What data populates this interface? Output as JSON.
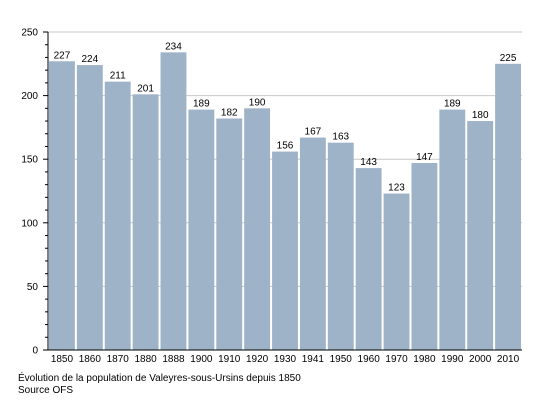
{
  "chart_data": {
    "type": "bar",
    "categories": [
      "1850",
      "1860",
      "1870",
      "1880",
      "1888",
      "1900",
      "1910",
      "1920",
      "1930",
      "1941",
      "1950",
      "1960",
      "1970",
      "1980",
      "1990",
      "2000",
      "2010"
    ],
    "values": [
      227,
      224,
      211,
      201,
      234,
      189,
      182,
      190,
      156,
      167,
      163,
      143,
      123,
      147,
      189,
      180,
      225
    ],
    "ylim": [
      0,
      250
    ],
    "yticks": [
      0,
      50,
      100,
      150,
      200,
      250
    ],
    "grid": true,
    "bar_color": "#9fb3c8",
    "caption": "Évolution de la population de Valeyres-sous-Ursins depuis 1850",
    "source": "Source OFS"
  }
}
